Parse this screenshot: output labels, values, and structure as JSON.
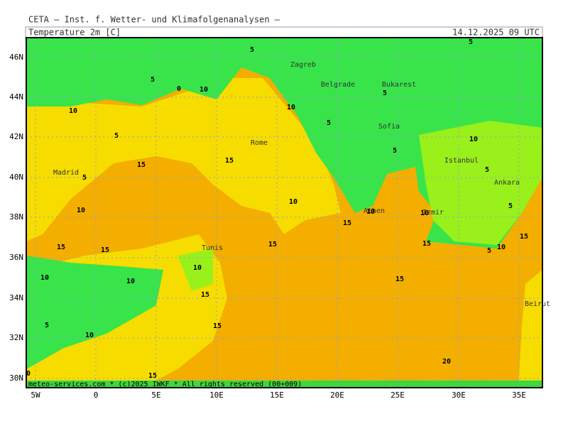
{
  "header": {
    "institute": "CETA — Inst. f. Wetter- und Klimafolgenanalysen —",
    "variable": "Temperature_2m [C]",
    "valid_time": "14.12.2025 09 UTC"
  },
  "lat_labels": [
    "46N",
    "44N",
    "42N",
    "40N",
    "38N",
    "36N",
    "34N",
    "32N",
    "30N"
  ],
  "lon_labels": [
    "5W",
    "0",
    "5E",
    "10E",
    "15E",
    "20E",
    "25E",
    "30E",
    "35E"
  ],
  "cities": [
    "Zagreb",
    "Belgrade",
    "Bukarest",
    "Sofia",
    "Rome",
    "Istanbul",
    "Madrid",
    "Ankara",
    "Athen",
    "Izmir",
    "Tunis",
    "Beirut"
  ],
  "contour_labels": [
    5,
    5,
    5,
    0,
    10,
    10,
    5,
    10,
    5,
    5,
    10,
    5,
    15,
    15,
    5,
    5,
    10,
    5,
    10,
    10,
    10,
    15,
    15,
    15,
    15,
    15,
    15,
    5,
    10,
    10,
    10,
    10,
    15,
    15,
    15,
    5,
    10,
    20,
    15,
    0
  ],
  "footer": "meteo-services.com * (c)2025 IWKF * All rights reserved (00+009)"
}
